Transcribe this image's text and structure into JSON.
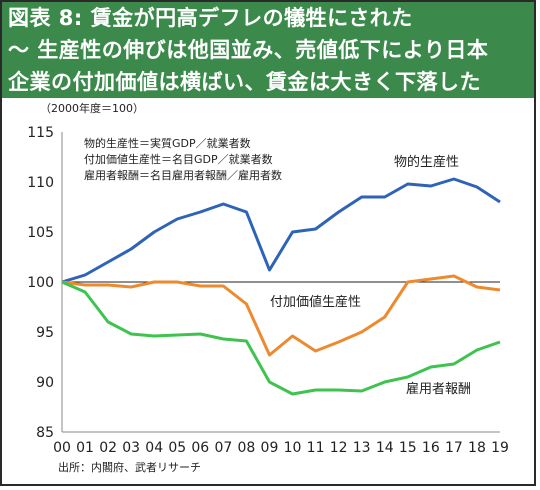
{
  "title": {
    "line1": "図表 8: 賃金が円高デフレの犠牲にされた",
    "line2": "～ 生産性の伸びは他国並み、売値低下により日本",
    "line3": "企業の付加価値は横ばい、賃金は大きく下落した"
  },
  "chart_data": {
    "type": "line",
    "unit_note": "（2000年度＝100）",
    "definitions": [
      "物的生産性＝実質GDP／就業者数",
      "付加価値生産性＝名目GDP／就業者数",
      "雇用者報酬＝名目雇用者報酬／雇用者数"
    ],
    "x": [
      "00",
      "01",
      "02",
      "03",
      "04",
      "05",
      "06",
      "07",
      "08",
      "09",
      "10",
      "11",
      "12",
      "13",
      "14",
      "15",
      "16",
      "17",
      "18",
      "19"
    ],
    "ylim": [
      85,
      115
    ],
    "yticks": [
      85,
      90,
      95,
      100,
      105,
      110,
      115
    ],
    "reference_line": 100,
    "series": [
      {
        "name": "物的生産性",
        "color": "#2e63b8",
        "values": [
          100,
          100.7,
          102,
          103.3,
          105,
          106.3,
          107,
          107.8,
          107,
          101.2,
          105,
          105.3,
          107,
          108.5,
          108.5,
          109.8,
          109.6,
          110.3,
          109.5,
          108
        ]
      },
      {
        "name": "付加価値生産性",
        "color": "#ee8a2e",
        "values": [
          100,
          99.7,
          99.7,
          99.5,
          100,
          100,
          99.6,
          99.6,
          97.8,
          92.7,
          94.6,
          93.1,
          94,
          95,
          96.5,
          100,
          100.3,
          100.6,
          99.5,
          99.2
        ]
      },
      {
        "name": "雇用者報酬",
        "color": "#3ec34e",
        "values": [
          100,
          99,
          96,
          94.8,
          94.6,
          94.7,
          94.8,
          94.3,
          94.1,
          90,
          88.8,
          89.2,
          89.2,
          89.1,
          90,
          90.5,
          91.5,
          91.8,
          93.2,
          94
        ]
      }
    ]
  },
  "source": "出所：内閣府、武者リサーチ"
}
